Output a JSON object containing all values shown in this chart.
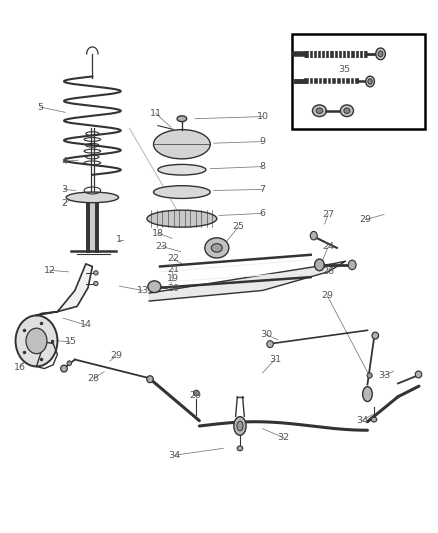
{
  "background_color": "#ffffff",
  "line_color": "#333333",
  "label_color": "#555555",
  "fig_width": 4.38,
  "fig_height": 5.33,
  "dpi": 100
}
